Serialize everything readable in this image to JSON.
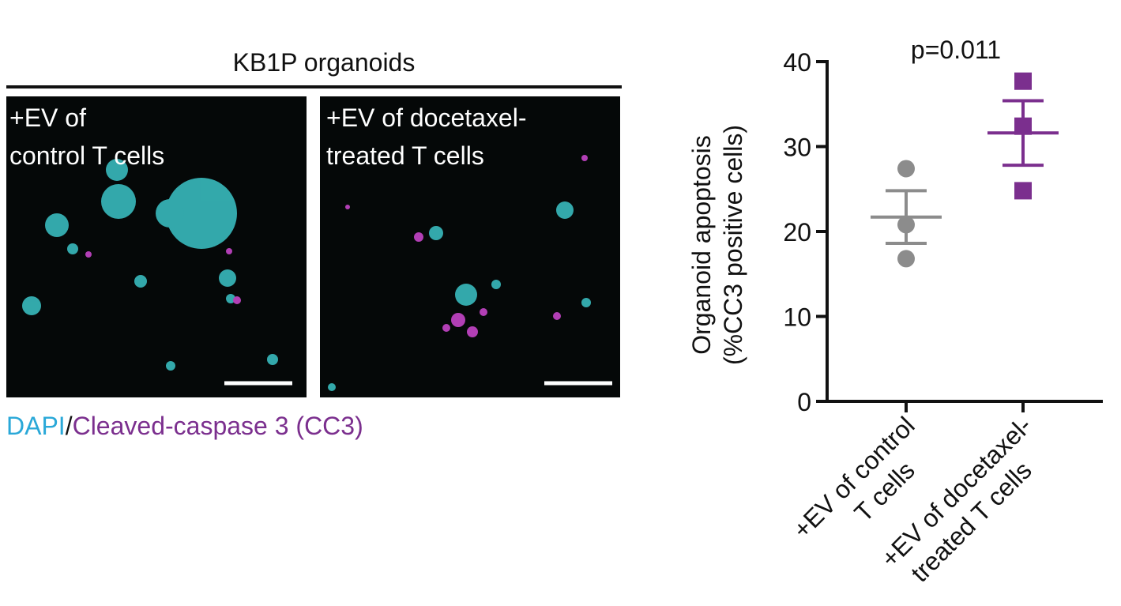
{
  "panel": {
    "title": "KB1P organoids",
    "images": [
      {
        "label": [
          "+EV of",
          "control T cells"
        ]
      },
      {
        "label": [
          "+EV of docetaxel-",
          "treated T cells"
        ]
      }
    ],
    "stain_legend": {
      "dapi": "DAPI",
      "separator": "/",
      "cc3": "Cleaved-caspase 3 (CC3)"
    }
  },
  "chart_data": {
    "type": "dot",
    "title": "p=0.011",
    "y_label": [
      "Organoid apoptosis",
      "(%CC3 positive cells)"
    ],
    "categories": [
      [
        "+EV of control",
        "T cells"
      ],
      [
        "+EV of docetaxel-",
        "treated T cells"
      ]
    ],
    "groups": [
      {
        "color": "#8c8c8c",
        "marker": "circle",
        "points": [
          27.4,
          20.8,
          16.8
        ],
        "mean": 21.7,
        "sem": 3.1
      },
      {
        "color": "#7b2f8e",
        "marker": "square",
        "points": [
          37.7,
          32.4,
          24.8
        ],
        "mean": 31.6,
        "sem": 3.8
      }
    ],
    "ylim": [
      0,
      40
    ],
    "yticks": [
      0,
      10,
      20,
      30,
      40
    ]
  }
}
